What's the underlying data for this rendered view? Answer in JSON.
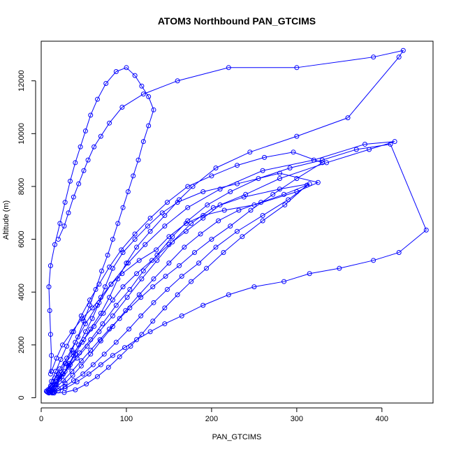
{
  "chart_data": {
    "type": "line",
    "title": "ATOM3 Northbound PAN_GTCIMS",
    "xlabel": "PAN_GTCIMS",
    "ylabel": "Altitude (m)",
    "xlim": [
      0,
      460
    ],
    "ylim": [
      -200,
      13500
    ],
    "xticks": [
      0,
      100,
      200,
      300,
      400
    ],
    "yticks": [
      0,
      2000,
      4000,
      6000,
      8000,
      10000,
      12000
    ],
    "grid": false,
    "legend": "none",
    "color": "#0000ff",
    "series": [
      {
        "values": [
          [
            8,
            200
          ],
          [
            12,
            250
          ],
          [
            15,
            400
          ],
          [
            18,
            600
          ],
          [
            22,
            800
          ],
          [
            28,
            1000
          ],
          [
            33,
            1300
          ],
          [
            38,
            1600
          ],
          [
            44,
            2000
          ],
          [
            52,
            2500
          ],
          [
            60,
            3000
          ],
          [
            68,
            3600
          ],
          [
            75,
            4200
          ],
          [
            84,
            4900
          ],
          [
            96,
            5500
          ],
          [
            110,
            6000
          ],
          [
            125,
            6500
          ],
          [
            142,
            7000
          ],
          [
            160,
            7400
          ],
          [
            190,
            7800
          ],
          [
            230,
            8100
          ],
          [
            280,
            8500
          ],
          [
            325,
            8150
          ],
          [
            300,
            7800
          ],
          [
            250,
            7300
          ],
          [
            215,
            7100
          ],
          [
            190,
            6900
          ],
          [
            170,
            6600
          ],
          [
            150,
            6100
          ],
          [
            135,
            5600
          ],
          [
            115,
            5200
          ],
          [
            95,
            4700
          ],
          [
            82,
            4300
          ],
          [
            70,
            3800
          ],
          [
            60,
            3400
          ],
          [
            48,
            3000
          ],
          [
            36,
            2500
          ],
          [
            25,
            2000
          ],
          [
            18,
            1500
          ],
          [
            12,
            1000
          ]
        ]
      },
      {
        "values": [
          [
            10,
            200
          ],
          [
            14,
            350
          ],
          [
            17,
            520
          ],
          [
            21,
            700
          ],
          [
            26,
            900
          ],
          [
            32,
            1200
          ],
          [
            40,
            1650
          ],
          [
            48,
            2100
          ],
          [
            58,
            2600
          ],
          [
            70,
            3200
          ],
          [
            80,
            3800
          ],
          [
            90,
            4500
          ],
          [
            100,
            5100
          ],
          [
            112,
            5700
          ],
          [
            128,
            6300
          ],
          [
            145,
            6900
          ],
          [
            162,
            7500
          ],
          [
            178,
            8000
          ],
          [
            205,
            8700
          ],
          [
            245,
            9300
          ],
          [
            300,
            9900
          ],
          [
            360,
            10600
          ],
          [
            420,
            12900
          ],
          [
            425,
            13150
          ],
          [
            390,
            12900
          ],
          [
            300,
            12500
          ],
          [
            220,
            12500
          ],
          [
            160,
            12000
          ],
          [
            120,
            11500
          ],
          [
            95,
            11000
          ],
          [
            80,
            10400
          ],
          [
            70,
            9900
          ],
          [
            62,
            9500
          ],
          [
            55,
            9000
          ],
          [
            50,
            8600
          ],
          [
            44,
            8100
          ],
          [
            38,
            7600
          ],
          [
            32,
            7000
          ],
          [
            27,
            6500
          ],
          [
            20,
            6000
          ]
        ]
      },
      {
        "values": [
          [
            6,
            250
          ],
          [
            11,
            450
          ],
          [
            16,
            750
          ],
          [
            22,
            1100
          ],
          [
            30,
            1500
          ],
          [
            40,
            2100
          ],
          [
            52,
            2800
          ],
          [
            66,
            3500
          ],
          [
            82,
            4300
          ],
          [
            102,
            5100
          ],
          [
            122,
            5800
          ],
          [
            145,
            6500
          ],
          [
            172,
            7200
          ],
          [
            210,
            7900
          ],
          [
            260,
            8600
          ],
          [
            320,
            9000
          ],
          [
            380,
            9600
          ],
          [
            415,
            9700
          ],
          [
            385,
            9400
          ],
          [
            335,
            8900
          ],
          [
            280,
            8300
          ],
          [
            240,
            7700
          ],
          [
            210,
            7300
          ],
          [
            190,
            6800
          ],
          [
            170,
            6300
          ],
          [
            150,
            5800
          ],
          [
            130,
            5200
          ],
          [
            112,
            4700
          ],
          [
            96,
            4200
          ],
          [
            84,
            3700
          ],
          [
            73,
            3200
          ],
          [
            62,
            2700
          ],
          [
            50,
            2200
          ],
          [
            38,
            1700
          ],
          [
            28,
            1300
          ],
          [
            20,
            900
          ],
          [
            14,
            600
          ],
          [
            10,
            350
          ]
        ]
      },
      {
        "values": [
          [
            9,
            180
          ],
          [
            13,
            300
          ],
          [
            18,
            500
          ],
          [
            24,
            800
          ],
          [
            32,
            1150
          ],
          [
            42,
            1500
          ],
          [
            54,
            1950
          ],
          [
            68,
            2500
          ],
          [
            84,
            3100
          ],
          [
            101,
            3800
          ],
          [
            118,
            4500
          ],
          [
            136,
            5200
          ],
          [
            154,
            5900
          ],
          [
            176,
            6600
          ],
          [
            202,
            7200
          ],
          [
            238,
            7600
          ],
          [
            280,
            7900
          ],
          [
            315,
            8100
          ],
          [
            290,
            7500
          ],
          [
            260,
            6900
          ],
          [
            230,
            6300
          ],
          [
            205,
            5700
          ],
          [
            185,
            5100
          ],
          [
            165,
            4600
          ],
          [
            148,
            4100
          ],
          [
            132,
            3600
          ],
          [
            117,
            3100
          ],
          [
            103,
            2600
          ],
          [
            88,
            2100
          ],
          [
            74,
            1650
          ],
          [
            61,
            1250
          ],
          [
            49,
            900
          ],
          [
            38,
            650
          ],
          [
            28,
            420
          ],
          [
            20,
            260
          ],
          [
            13,
            180
          ]
        ]
      },
      {
        "values": [
          [
            7,
            220
          ],
          [
            12,
            380
          ],
          [
            18,
            600
          ],
          [
            25,
            900
          ],
          [
            34,
            1250
          ],
          [
            45,
            1700
          ],
          [
            58,
            2200
          ],
          [
            72,
            2800
          ],
          [
            88,
            3500
          ],
          [
            104,
            4100
          ],
          [
            120,
            4800
          ],
          [
            136,
            5400
          ],
          [
            154,
            6100
          ],
          [
            172,
            6700
          ],
          [
            195,
            7300
          ],
          [
            222,
            7800
          ],
          [
            255,
            8300
          ],
          [
            292,
            8700
          ],
          [
            330,
            9000
          ],
          [
            370,
            9400
          ],
          [
            410,
            9600
          ],
          [
            452,
            6350
          ],
          [
            420,
            5500
          ],
          [
            390,
            5200
          ],
          [
            350,
            4900
          ],
          [
            315,
            4700
          ],
          [
            285,
            4400
          ],
          [
            250,
            4200
          ],
          [
            220,
            3900
          ],
          [
            190,
            3500
          ],
          [
            165,
            3100
          ],
          [
            145,
            2800
          ],
          [
            128,
            2500
          ],
          [
            112,
            2200
          ],
          [
            98,
            1900
          ],
          [
            84,
            1600
          ],
          [
            70,
            1250
          ],
          [
            56,
            900
          ],
          [
            42,
            600
          ],
          [
            28,
            350
          ],
          [
            15,
            220
          ]
        ]
      },
      {
        "values": [
          [
            10,
            260
          ],
          [
            16,
            500
          ],
          [
            22,
            850
          ],
          [
            29,
            1300
          ],
          [
            36,
            1800
          ],
          [
            43,
            2300
          ],
          [
            50,
            2900
          ],
          [
            57,
            3500
          ],
          [
            64,
            4100
          ],
          [
            71,
            4800
          ],
          [
            78,
            5400
          ],
          [
            84,
            6000
          ],
          [
            90,
            6600
          ],
          [
            96,
            7200
          ],
          [
            102,
            7800
          ],
          [
            108,
            8400
          ],
          [
            114,
            9000
          ],
          [
            120,
            9700
          ],
          [
            126,
            10300
          ],
          [
            132,
            10900
          ],
          [
            126,
            11400
          ],
          [
            118,
            11800
          ],
          [
            110,
            12200
          ],
          [
            100,
            12500
          ],
          [
            88,
            12350
          ],
          [
            76,
            11900
          ],
          [
            66,
            11300
          ],
          [
            58,
            10700
          ],
          [
            52,
            10100
          ],
          [
            46,
            9500
          ],
          [
            40,
            8900
          ],
          [
            34,
            8200
          ],
          [
            28,
            7400
          ],
          [
            22,
            6600
          ],
          [
            16,
            5800
          ],
          [
            11,
            5000
          ],
          [
            9,
            4200
          ],
          [
            10,
            3300
          ],
          [
            11,
            2400
          ],
          [
            12,
            1600
          ],
          [
            11,
            900
          ]
        ]
      },
      {
        "values": [
          [
            13,
            200
          ],
          [
            20,
            350
          ],
          [
            28,
            550
          ],
          [
            37,
            850
          ],
          [
            47,
            1200
          ],
          [
            58,
            1650
          ],
          [
            70,
            2150
          ],
          [
            84,
            2700
          ],
          [
            99,
            3300
          ],
          [
            115,
            3900
          ],
          [
            132,
            4500
          ],
          [
            150,
            5100
          ],
          [
            168,
            5700
          ],
          [
            187,
            6200
          ],
          [
            208,
            6700
          ],
          [
            232,
            7100
          ],
          [
            258,
            7400
          ],
          [
            285,
            7700
          ],
          [
            312,
            8050
          ],
          [
            286,
            7300
          ],
          [
            260,
            6700
          ],
          [
            236,
            6100
          ],
          [
            214,
            5500
          ],
          [
            194,
            4900
          ],
          [
            176,
            4400
          ],
          [
            160,
            3900
          ],
          [
            145,
            3400
          ],
          [
            131,
            2900
          ],
          [
            118,
            2400
          ],
          [
            105,
            1950
          ],
          [
            92,
            1550
          ],
          [
            79,
            1150
          ],
          [
            66,
            800
          ],
          [
            53,
            520
          ],
          [
            40,
            300
          ],
          [
            27,
            200
          ],
          [
            15,
            180
          ]
        ]
      },
      {
        "values": [
          [
            8,
            300
          ],
          [
            12,
            620
          ],
          [
            17,
            1000
          ],
          [
            23,
            1450
          ],
          [
            30,
            1950
          ],
          [
            38,
            2500
          ],
          [
            47,
            3100
          ],
          [
            57,
            3700
          ],
          [
            68,
            4300
          ],
          [
            80,
            4950
          ],
          [
            94,
            5600
          ],
          [
            110,
            6200
          ],
          [
            128,
            6800
          ],
          [
            148,
            7400
          ],
          [
            172,
            8000
          ],
          [
            200,
            8400
          ],
          [
            230,
            8800
          ],
          [
            262,
            9100
          ],
          [
            296,
            9300
          ],
          [
            330,
            8900
          ],
          [
            300,
            8300
          ],
          [
            272,
            7700
          ],
          [
            246,
            7100
          ],
          [
            222,
            6500
          ],
          [
            200,
            6000
          ],
          [
            180,
            5500
          ],
          [
            162,
            5000
          ],
          [
            146,
            4600
          ],
          [
            131,
            4200
          ],
          [
            117,
            3800
          ],
          [
            104,
            3400
          ],
          [
            92,
            3000
          ],
          [
            80,
            2600
          ],
          [
            69,
            2200
          ],
          [
            58,
            1800
          ],
          [
            47,
            1400
          ],
          [
            36,
            1000
          ],
          [
            26,
            650
          ],
          [
            17,
            380
          ],
          [
            10,
            220
          ]
        ]
      }
    ]
  }
}
